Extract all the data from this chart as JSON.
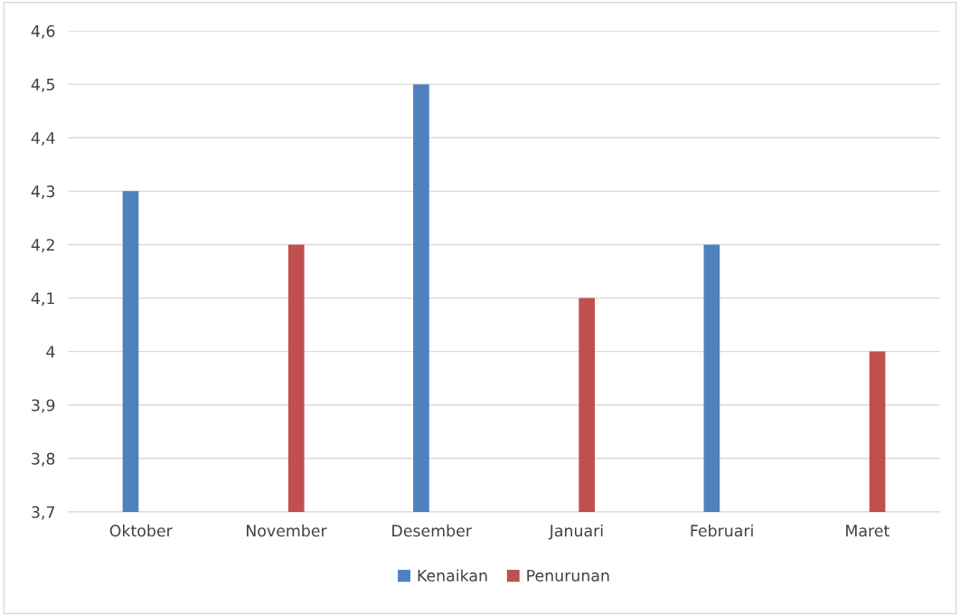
{
  "chart_data": {
    "type": "bar",
    "categories": [
      "Oktober",
      "November",
      "Desember",
      "Januari",
      "Februari",
      "Maret"
    ],
    "series": [
      {
        "name": "Kenaikan",
        "color": "#4f81bd",
        "values": [
          4.3,
          null,
          4.5,
          null,
          4.2,
          null
        ]
      },
      {
        "name": "Penurunan",
        "color": "#c0504d",
        "values": [
          null,
          4.2,
          null,
          4.1,
          null,
          4.0
        ]
      }
    ],
    "ylim": [
      3.7,
      4.6
    ],
    "yticks": [
      {
        "value": 3.7,
        "label": "3,7"
      },
      {
        "value": 3.8,
        "label": "3,8"
      },
      {
        "value": 3.9,
        "label": "3,9"
      },
      4,
      {
        "value": 4.1,
        "label": "4,1"
      },
      {
        "value": 4.2,
        "label": "4,2"
      },
      {
        "value": 4.3,
        "label": "4,3"
      },
      {
        "value": 4.4,
        "label": "4,4"
      },
      {
        "value": 4.5,
        "label": "4,5"
      },
      {
        "value": 4.6,
        "label": "4,6"
      }
    ],
    "grid": "y",
    "legend": "bottom"
  }
}
